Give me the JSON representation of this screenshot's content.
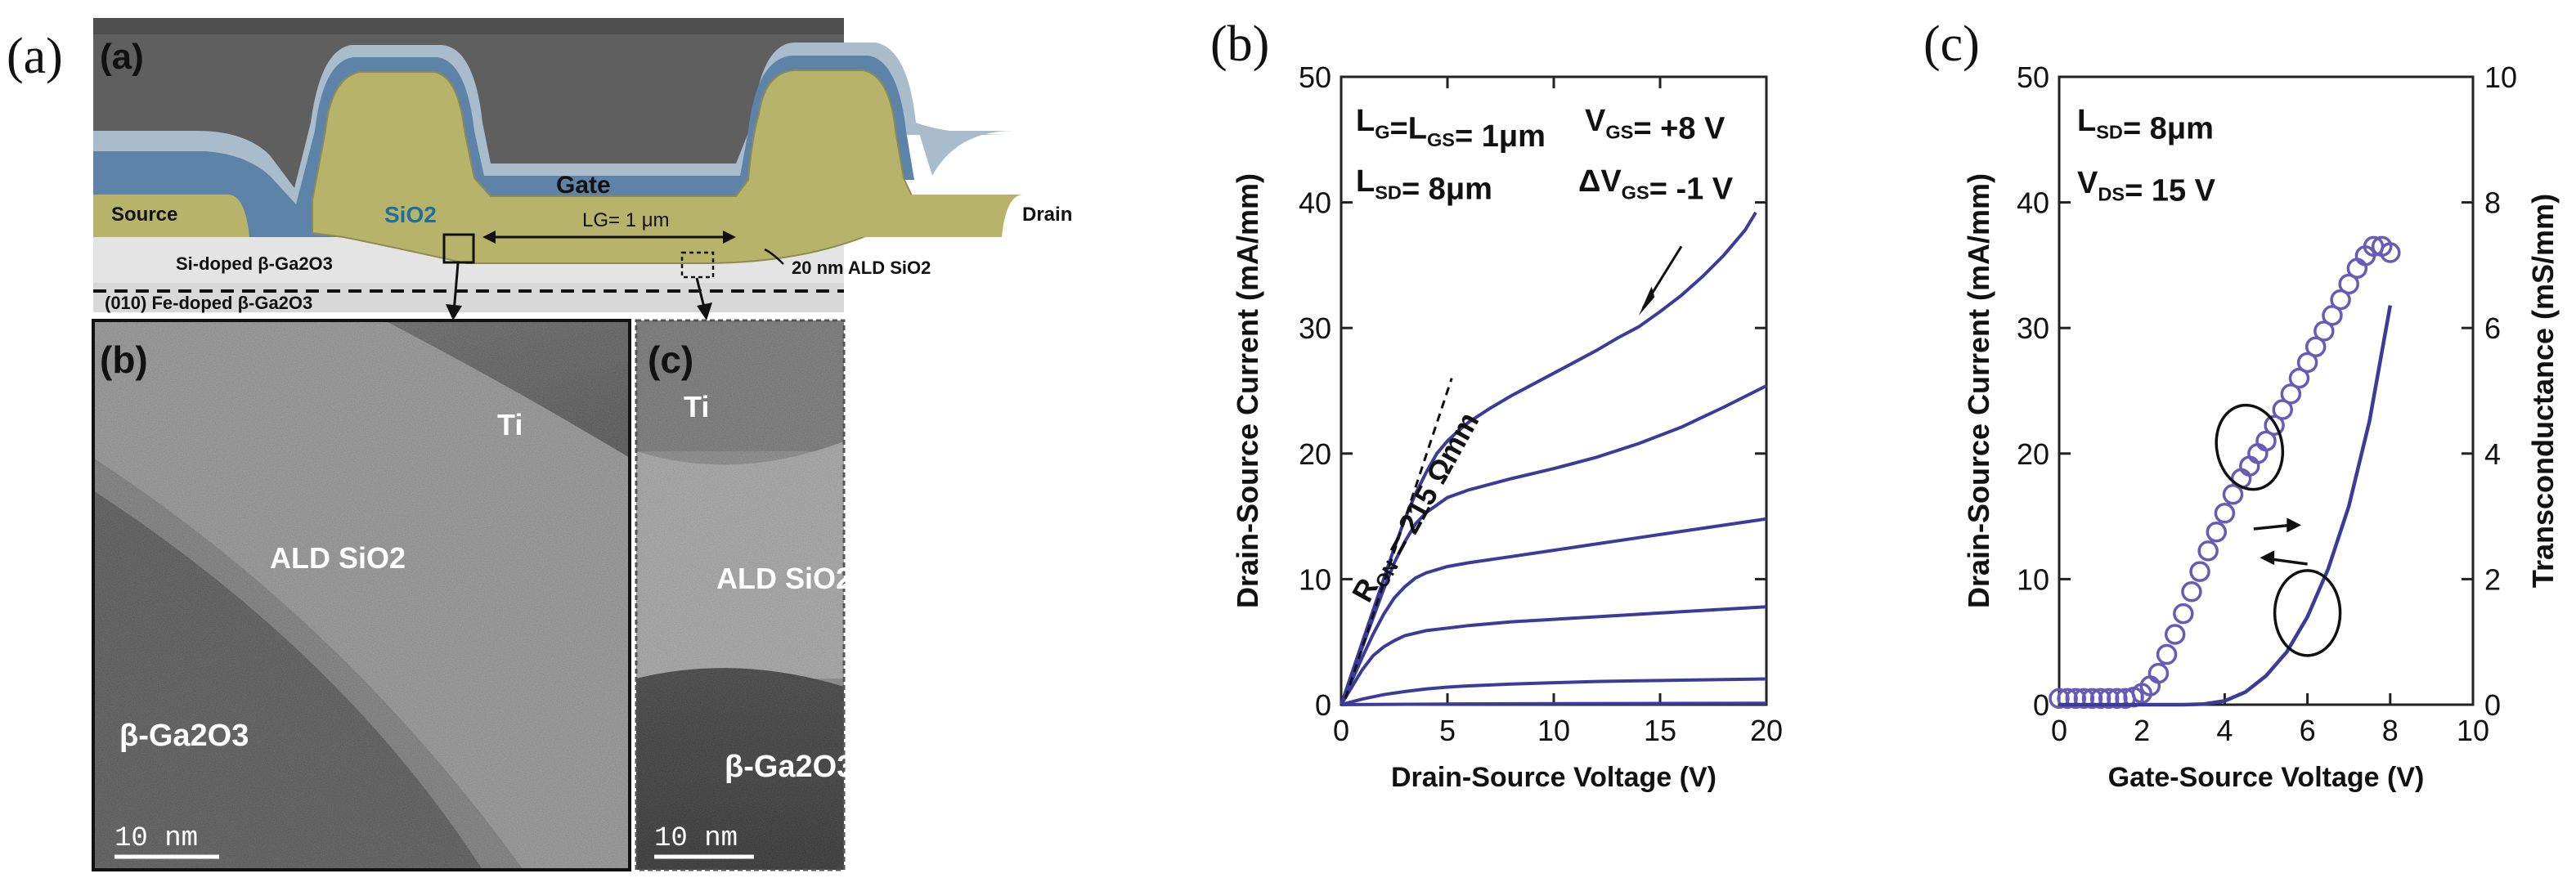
{
  "panel_a": {
    "outer_letter": "(a)",
    "inner_letter": "(a)",
    "labels": {
      "gate": "Gate",
      "source": "Source",
      "drain": "Drain",
      "sio2": "SiO2",
      "lg": "LG= 1 μm",
      "ald_note": "20 nm ALD SiO2",
      "si_doped": "Si-doped β-Ga2O3",
      "fe_doped": "(010) Fe-doped β-Ga2O3"
    },
    "tem_b": {
      "letter": "(b)",
      "ti": "Ti",
      "oxide": "ALD SiO2",
      "substrate": "β-Ga2O3",
      "scale": "10 nm"
    },
    "tem_c": {
      "letter": "(c)",
      "ti": "Ti",
      "oxide": "ALD SiO2",
      "substrate": "β-Ga2O3",
      "scale": "10 nm"
    },
    "colors": {
      "gate": "#b8b36a",
      "oxide_blue": "#5d84a8",
      "light_blue": "#9ec3d8",
      "substrate": "#d4d4d4",
      "dark": "#5f5f5f"
    }
  },
  "chart_data": [
    {
      "type": "line",
      "panel_letter": "(b)",
      "xlabel": "Drain-Source Voltage (V)",
      "ylabel": "Drain-Source Current (mA/mm)",
      "xlim": [
        0,
        20
      ],
      "ylim": [
        0,
        50
      ],
      "xticks": [
        0,
        5,
        10,
        15,
        20
      ],
      "yticks": [
        0,
        10,
        20,
        30,
        40,
        50
      ],
      "annotations": {
        "lg_lgs": "LG=LGS= 1μm",
        "lsd": "LSD= 8μm",
        "vgs": "VGS= +8 V",
        "dvgs": "ΔVGS= -1 V",
        "ron": "RON = 215 Ωmm"
      },
      "line_color": "#3b3c9a",
      "series": [
        {
          "x": [
            0,
            0.5,
            1,
            1.5,
            2,
            2.5,
            3,
            3.5,
            4,
            4.5,
            5,
            5.5,
            6,
            7,
            8,
            9,
            10,
            11,
            12,
            13,
            14,
            15,
            16,
            17,
            18,
            19,
            19.5
          ],
          "values": [
            0,
            2.5,
            5,
            7.5,
            10,
            12.5,
            14.8,
            16.8,
            18.5,
            20,
            21,
            21.8,
            22.5,
            23.6,
            24.6,
            25.5,
            26.4,
            27.3,
            28.2,
            29.2,
            30.1,
            31.3,
            32.6,
            34.1,
            35.8,
            37.8,
            39.2
          ]
        },
        {
          "x": [
            0,
            0.5,
            1,
            1.5,
            2,
            2.5,
            3,
            3.5,
            4,
            5,
            6,
            8,
            10,
            12,
            14,
            16,
            18,
            20
          ],
          "values": [
            0,
            2.2,
            4.6,
            6.9,
            9.2,
            11.3,
            13,
            14.4,
            15.3,
            16.5,
            17.1,
            18,
            18.8,
            19.7,
            20.8,
            22.1,
            23.7,
            25.4
          ]
        },
        {
          "x": [
            0,
            0.5,
            1,
            1.5,
            2,
            2.5,
            3,
            3.5,
            4,
            5,
            6,
            8,
            10,
            12,
            14,
            16,
            18,
            20
          ],
          "values": [
            0,
            1.9,
            3.8,
            5.6,
            7.2,
            8.5,
            9.4,
            10.1,
            10.5,
            11,
            11.3,
            11.8,
            12.3,
            12.8,
            13.3,
            13.8,
            14.3,
            14.8
          ]
        },
        {
          "x": [
            0,
            0.5,
            1,
            1.5,
            2,
            2.5,
            3,
            4,
            5,
            6,
            8,
            10,
            12,
            14,
            16,
            18,
            20
          ],
          "values": [
            0,
            1.4,
            2.8,
            3.9,
            4.6,
            5.1,
            5.5,
            5.9,
            6.1,
            6.3,
            6.6,
            6.8,
            7,
            7.2,
            7.4,
            7.6,
            7.8
          ]
        },
        {
          "x": [
            0,
            1,
            2,
            3,
            4,
            5,
            6,
            8,
            10,
            12,
            14,
            16,
            18,
            20
          ],
          "values": [
            0,
            0.45,
            0.8,
            1.05,
            1.25,
            1.4,
            1.5,
            1.65,
            1.75,
            1.85,
            1.9,
            1.95,
            2,
            2.05
          ]
        },
        {
          "x": [
            0,
            5,
            10,
            15,
            20
          ],
          "values": [
            0,
            0.05,
            0.08,
            0.1,
            0.12
          ]
        }
      ]
    },
    {
      "type": "line",
      "panel_letter": "(c)",
      "xlabel": "Gate-Source Voltage (V)",
      "ylabel": "Drain-Source Current (mA/mm)",
      "y2label": "Transconductance (mS/mm)",
      "xlim": [
        0,
        10
      ],
      "ylim": [
        0,
        50
      ],
      "y2lim": [
        0,
        10
      ],
      "xticks": [
        0,
        2,
        4,
        6,
        8,
        10
      ],
      "yticks": [
        0,
        10,
        20,
        30,
        40,
        50
      ],
      "y2ticks": [
        0,
        2,
        4,
        6,
        8,
        10
      ],
      "annotations": {
        "lsd": "LSD= 8μm",
        "vds": "VDS= 15 V"
      },
      "line_color": "#3b3c9a",
      "marker_color": "#6a5ab8",
      "series": [
        {
          "x": [
            0,
            1,
            2,
            2.5,
            3,
            3.5,
            4,
            4.5,
            5,
            5.5,
            6,
            6.5,
            7,
            7.5,
            8
          ],
          "values": [
            0,
            0,
            0,
            0,
            0,
            0.05,
            0.3,
            1,
            2.3,
            4.2,
            7,
            10.8,
            15.8,
            22.6,
            31.8
          ]
        },
        {
          "axis": "right",
          "x": [
            0,
            0.2,
            0.4,
            0.6,
            0.8,
            1,
            1.2,
            1.4,
            1.6,
            1.8,
            2,
            2.2,
            2.4,
            2.6,
            2.8,
            3,
            3.2,
            3.4,
            3.6,
            3.8,
            4,
            4.2,
            4.4,
            4.6,
            4.8,
            5,
            5.2,
            5.4,
            5.6,
            5.8,
            6,
            6.2,
            6.4,
            6.6,
            6.8,
            7,
            7.2,
            7.4,
            7.6,
            7.8,
            8
          ],
          "values": [
            0.1,
            0.1,
            0.1,
            0.1,
            0.1,
            0.1,
            0.1,
            0.1,
            0.1,
            0.12,
            0.18,
            0.3,
            0.5,
            0.8,
            1.12,
            1.45,
            1.8,
            2.12,
            2.45,
            2.75,
            3.05,
            3.35,
            3.6,
            3.8,
            4,
            4.2,
            4.45,
            4.7,
            4.95,
            5.2,
            5.45,
            5.7,
            5.95,
            6.2,
            6.45,
            6.7,
            6.95,
            7.15,
            7.3,
            7.3,
            7.2
          ]
        }
      ]
    }
  ]
}
